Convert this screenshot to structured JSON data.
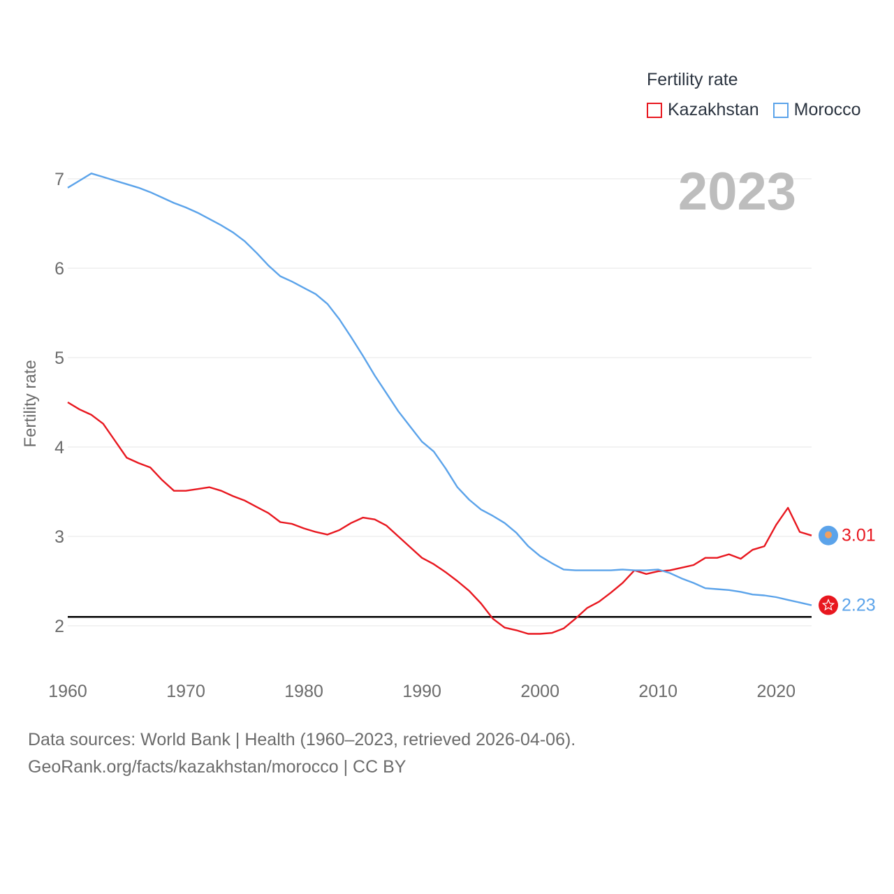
{
  "chart_data": {
    "type": "line",
    "ylabel": "Fertility rate",
    "year_label": "2023",
    "xlim": [
      1960,
      2023
    ],
    "ylim": [
      1.55,
      7.5
    ],
    "xticks": [
      1960,
      1970,
      1980,
      1990,
      2000,
      2010,
      2020
    ],
    "yticks": [
      2,
      3,
      4,
      5,
      6,
      7
    ],
    "reference_line": 2.1,
    "legend": {
      "title": "Fertility rate",
      "position": "top-right"
    },
    "x": [
      1960,
      1961,
      1962,
      1963,
      1964,
      1965,
      1966,
      1967,
      1968,
      1969,
      1970,
      1971,
      1972,
      1973,
      1974,
      1975,
      1976,
      1977,
      1978,
      1979,
      1980,
      1981,
      1982,
      1983,
      1984,
      1985,
      1986,
      1987,
      1988,
      1989,
      1990,
      1991,
      1992,
      1993,
      1994,
      1995,
      1996,
      1997,
      1998,
      1999,
      2000,
      2001,
      2002,
      2003,
      2004,
      2005,
      2006,
      2007,
      2008,
      2009,
      2010,
      2011,
      2012,
      2013,
      2014,
      2015,
      2016,
      2017,
      2018,
      2019,
      2020,
      2021,
      2022,
      2023
    ],
    "series": [
      {
        "name": "Kazakhstan",
        "color": "#e8171f",
        "end_label": "3.01",
        "icon": "kazakhstan-flag-icon",
        "values": [
          4.5,
          4.42,
          4.36,
          4.26,
          4.07,
          3.88,
          3.82,
          3.77,
          3.63,
          3.51,
          3.51,
          3.53,
          3.55,
          3.51,
          3.45,
          3.4,
          3.33,
          3.26,
          3.16,
          3.14,
          3.09,
          3.05,
          3.02,
          3.07,
          3.15,
          3.21,
          3.19,
          3.12,
          3.0,
          2.88,
          2.76,
          2.69,
          2.6,
          2.5,
          2.39,
          2.25,
          2.08,
          1.98,
          1.95,
          1.91,
          1.91,
          1.92,
          1.97,
          2.08,
          2.2,
          2.27,
          2.37,
          2.48,
          2.62,
          2.58,
          2.61,
          2.62,
          2.65,
          2.68,
          2.76,
          2.76,
          2.8,
          2.75,
          2.85,
          2.89,
          3.13,
          3.32,
          3.05,
          3.01
        ]
      },
      {
        "name": "Morocco",
        "color": "#5ba3ea",
        "end_label": "2.23",
        "icon": "morocco-flag-icon",
        "values": [
          6.9,
          6.98,
          7.06,
          7.02,
          6.98,
          6.94,
          6.9,
          6.85,
          6.79,
          6.73,
          6.68,
          6.62,
          6.55,
          6.48,
          6.4,
          6.3,
          6.17,
          6.03,
          5.91,
          5.85,
          5.78,
          5.71,
          5.6,
          5.43,
          5.23,
          5.02,
          4.8,
          4.6,
          4.4,
          4.23,
          4.06,
          3.95,
          3.76,
          3.55,
          3.41,
          3.3,
          3.23,
          3.15,
          3.04,
          2.89,
          2.78,
          2.7,
          2.63,
          2.62,
          2.62,
          2.62,
          2.62,
          2.63,
          2.62,
          2.62,
          2.63,
          2.59,
          2.53,
          2.48,
          2.42,
          2.41,
          2.4,
          2.38,
          2.35,
          2.34,
          2.32,
          2.29,
          2.26,
          2.23
        ]
      }
    ]
  },
  "footer": {
    "line1": "Data sources: World Bank | Health (1960–2023, retrieved 2026-04-06).",
    "line2": "GeoRank.org/facts/kazakhstan/morocco | CC BY"
  }
}
